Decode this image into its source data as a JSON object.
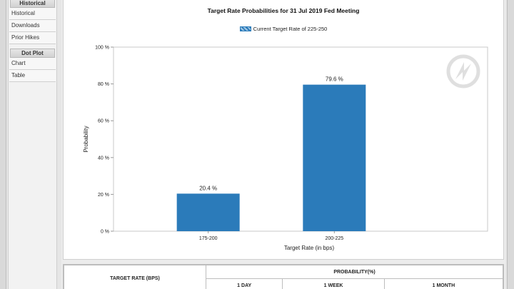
{
  "sidebar": {
    "sections": [
      {
        "title": "Historical",
        "items": [
          "Historical",
          "Downloads",
          "Prior Hikes"
        ]
      },
      {
        "title": "Dot Plot",
        "items": [
          "Chart",
          "Table"
        ]
      }
    ]
  },
  "chart_data": {
    "type": "bar",
    "title": "Target Rate Probabilities for 31 Jul 2019 Fed Meeting",
    "legend": [
      "Current Target Rate of 225-250"
    ],
    "legend_placement": "top-center",
    "categories": [
      "175-200",
      "200-225"
    ],
    "series": [
      {
        "values": [
          20.4,
          79.6
        ]
      }
    ],
    "data_labels": [
      "20.4 %",
      "79.6 %"
    ],
    "xlabel": "Target Rate (in bps)",
    "ylabel": "Probability",
    "ylim": [
      0,
      100
    ],
    "yticks": [
      "0 %",
      "20 %",
      "40 %",
      "60 %",
      "80 %",
      "100 %"
    ],
    "grid": false,
    "bar_color": "#2b7bba"
  },
  "table": {
    "target_header": "TARGET RATE (BPS)",
    "probability_header": "PROBABILITY(%)",
    "sub_headers": [
      "1 DAY",
      "1 WEEK",
      "1 MONTH"
    ]
  }
}
